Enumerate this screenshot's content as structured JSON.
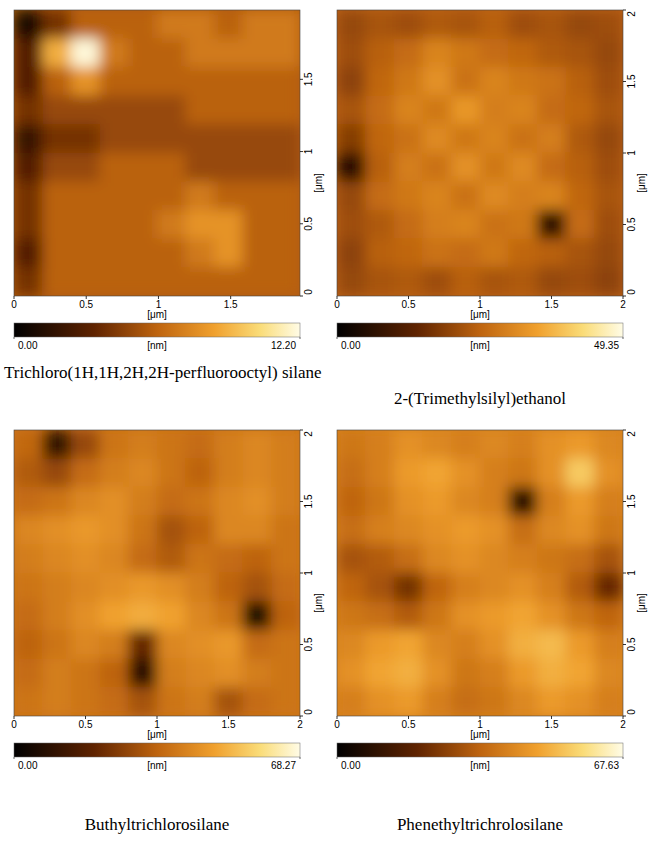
{
  "chart_data": [
    {
      "type": "heatmap",
      "title": "Trichloro(1H,1H,2H,2H-perfluorooctyl) silane",
      "x_label": "[μm]",
      "y_label": "[μm]",
      "xlim": [
        0,
        1.98
      ],
      "ylim": [
        0,
        1.98
      ],
      "xticks": [
        0,
        0.5,
        1,
        1.5
      ],
      "yticks": [
        0,
        0.5,
        1,
        1.5
      ],
      "cells": [
        [
          1,
          4,
          6,
          6,
          6,
          7,
          7,
          6,
          7,
          7
        ],
        [
          3,
          9,
          12,
          7,
          6,
          6,
          7,
          7,
          7,
          7
        ],
        [
          3,
          6,
          8,
          6,
          6,
          6,
          6,
          6,
          6,
          6
        ],
        [
          4,
          5,
          5,
          5,
          5,
          5,
          6,
          6,
          6,
          6
        ],
        [
          2,
          4,
          4,
          5,
          5,
          5,
          5,
          5,
          5,
          5
        ],
        [
          3,
          5,
          5,
          6,
          6,
          6,
          5,
          5,
          5,
          5
        ],
        [
          4,
          6,
          6,
          6,
          6,
          6,
          7,
          6,
          6,
          6
        ],
        [
          4,
          6,
          6,
          6,
          6,
          7,
          8,
          8,
          6,
          6
        ],
        [
          3,
          6,
          6,
          6,
          6,
          6,
          7,
          8,
          6,
          6
        ],
        [
          4,
          6,
          6,
          6,
          6,
          6,
          6,
          6,
          6,
          6
        ]
      ],
      "color_label": "[nm]",
      "color_range": [
        0,
        12.2
      ],
      "color_ticks": [
        {
          "value": 0,
          "label": "0.00"
        },
        {
          "value": 12.2,
          "label": "12.20"
        }
      ]
    },
    {
      "type": "heatmap",
      "title": "2-(Trimethylsilyl)ethanol",
      "x_label": "[μm]",
      "y_label": "[μm]",
      "xlim": [
        0,
        2
      ],
      "ylim": [
        0,
        2
      ],
      "xticks": [
        0,
        0.5,
        1,
        1.5,
        2
      ],
      "yticks": [
        0,
        0.5,
        1,
        1.5,
        2
      ],
      "cells": [
        [
          20,
          22,
          21,
          23,
          22,
          24,
          21,
          22,
          20,
          21
        ],
        [
          21,
          24,
          26,
          30,
          28,
          26,
          25,
          23,
          22,
          20
        ],
        [
          19,
          25,
          28,
          32,
          27,
          30,
          28,
          27,
          24,
          21
        ],
        [
          22,
          26,
          30,
          28,
          33,
          29,
          30,
          26,
          25,
          22
        ],
        [
          18,
          25,
          27,
          31,
          28,
          30,
          27,
          29,
          23,
          20
        ],
        [
          6,
          24,
          29,
          27,
          32,
          28,
          31,
          26,
          24,
          21
        ],
        [
          20,
          26,
          28,
          30,
          27,
          31,
          29,
          30,
          25,
          22
        ],
        [
          21,
          23,
          26,
          29,
          30,
          27,
          28,
          6,
          26,
          21
        ],
        [
          19,
          24,
          25,
          27,
          26,
          28,
          25,
          24,
          22,
          20
        ],
        [
          20,
          22,
          23,
          21,
          24,
          22,
          23,
          20,
          21,
          19
        ]
      ],
      "color_label": "[nm]",
      "color_range": [
        0,
        49.35
      ],
      "color_ticks": [
        {
          "value": 0,
          "label": "0.00"
        },
        {
          "value": 49.35,
          "label": "49.35"
        }
      ]
    },
    {
      "type": "heatmap",
      "title": "Buthyltrichlorosilane",
      "x_label": "[μm]",
      "y_label": "[μm]",
      "xlim": [
        0,
        2
      ],
      "ylim": [
        0,
        2
      ],
      "xticks": [
        0,
        0.5,
        1,
        1.5,
        2
      ],
      "yticks": [
        0,
        0.5,
        1,
        1.5,
        2
      ],
      "cells": [
        [
          35,
          10,
          28,
          38,
          40,
          38,
          36,
          40,
          42,
          40
        ],
        [
          32,
          28,
          36,
          40,
          42,
          38,
          34,
          40,
          42,
          40
        ],
        [
          36,
          38,
          42,
          44,
          40,
          36,
          38,
          42,
          44,
          40
        ],
        [
          42,
          44,
          46,
          44,
          38,
          30,
          34,
          42,
          42,
          38
        ],
        [
          40,
          42,
          44,
          42,
          36,
          32,
          38,
          36,
          34,
          38
        ],
        [
          38,
          40,
          42,
          44,
          46,
          44,
          40,
          34,
          30,
          36
        ],
        [
          36,
          40,
          44,
          48,
          50,
          48,
          42,
          38,
          5,
          34
        ],
        [
          34,
          38,
          42,
          40,
          20,
          42,
          44,
          46,
          36,
          38
        ],
        [
          36,
          40,
          38,
          34,
          8,
          40,
          42,
          44,
          40,
          38
        ],
        [
          38,
          40,
          38,
          36,
          30,
          38,
          40,
          30,
          36,
          38
        ]
      ],
      "color_label": "[nm]",
      "color_range": [
        0,
        68.27
      ],
      "color_ticks": [
        {
          "value": 0,
          "label": "0.00"
        },
        {
          "value": 68.27,
          "label": "68.27"
        }
      ]
    },
    {
      "type": "heatmap",
      "title": "Phenethyltrichrolosilane",
      "x_label": "[μm]",
      "y_label": "[μm]",
      "xlim": [
        0,
        2
      ],
      "ylim": [
        0,
        2
      ],
      "xticks": [
        0,
        0.5,
        1,
        1.5,
        2
      ],
      "yticks": [
        0,
        0.5,
        1,
        1.5,
        2
      ],
      "cells": [
        [
          38,
          40,
          44,
          42,
          40,
          42,
          40,
          44,
          46,
          42
        ],
        [
          36,
          40,
          46,
          48,
          44,
          40,
          38,
          44,
          55,
          44
        ],
        [
          34,
          38,
          44,
          46,
          42,
          40,
          8,
          40,
          46,
          40
        ],
        [
          36,
          40,
          42,
          44,
          46,
          44,
          36,
          42,
          44,
          38
        ],
        [
          30,
          32,
          36,
          42,
          44,
          42,
          40,
          38,
          36,
          30
        ],
        [
          34,
          30,
          22,
          34,
          40,
          42,
          44,
          40,
          32,
          20
        ],
        [
          38,
          36,
          32,
          38,
          44,
          46,
          48,
          44,
          38,
          34
        ],
        [
          42,
          46,
          48,
          42,
          40,
          44,
          50,
          52,
          46,
          40
        ],
        [
          44,
          48,
          50,
          44,
          38,
          40,
          46,
          50,
          48,
          42
        ],
        [
          40,
          44,
          46,
          40,
          36,
          38,
          42,
          46,
          44,
          40
        ]
      ],
      "color_label": "[nm]",
      "color_range": [
        0,
        67.63
      ],
      "color_ticks": [
        {
          "value": 0,
          "label": "0.00"
        },
        {
          "value": 67.63,
          "label": "67.63"
        }
      ]
    }
  ]
}
